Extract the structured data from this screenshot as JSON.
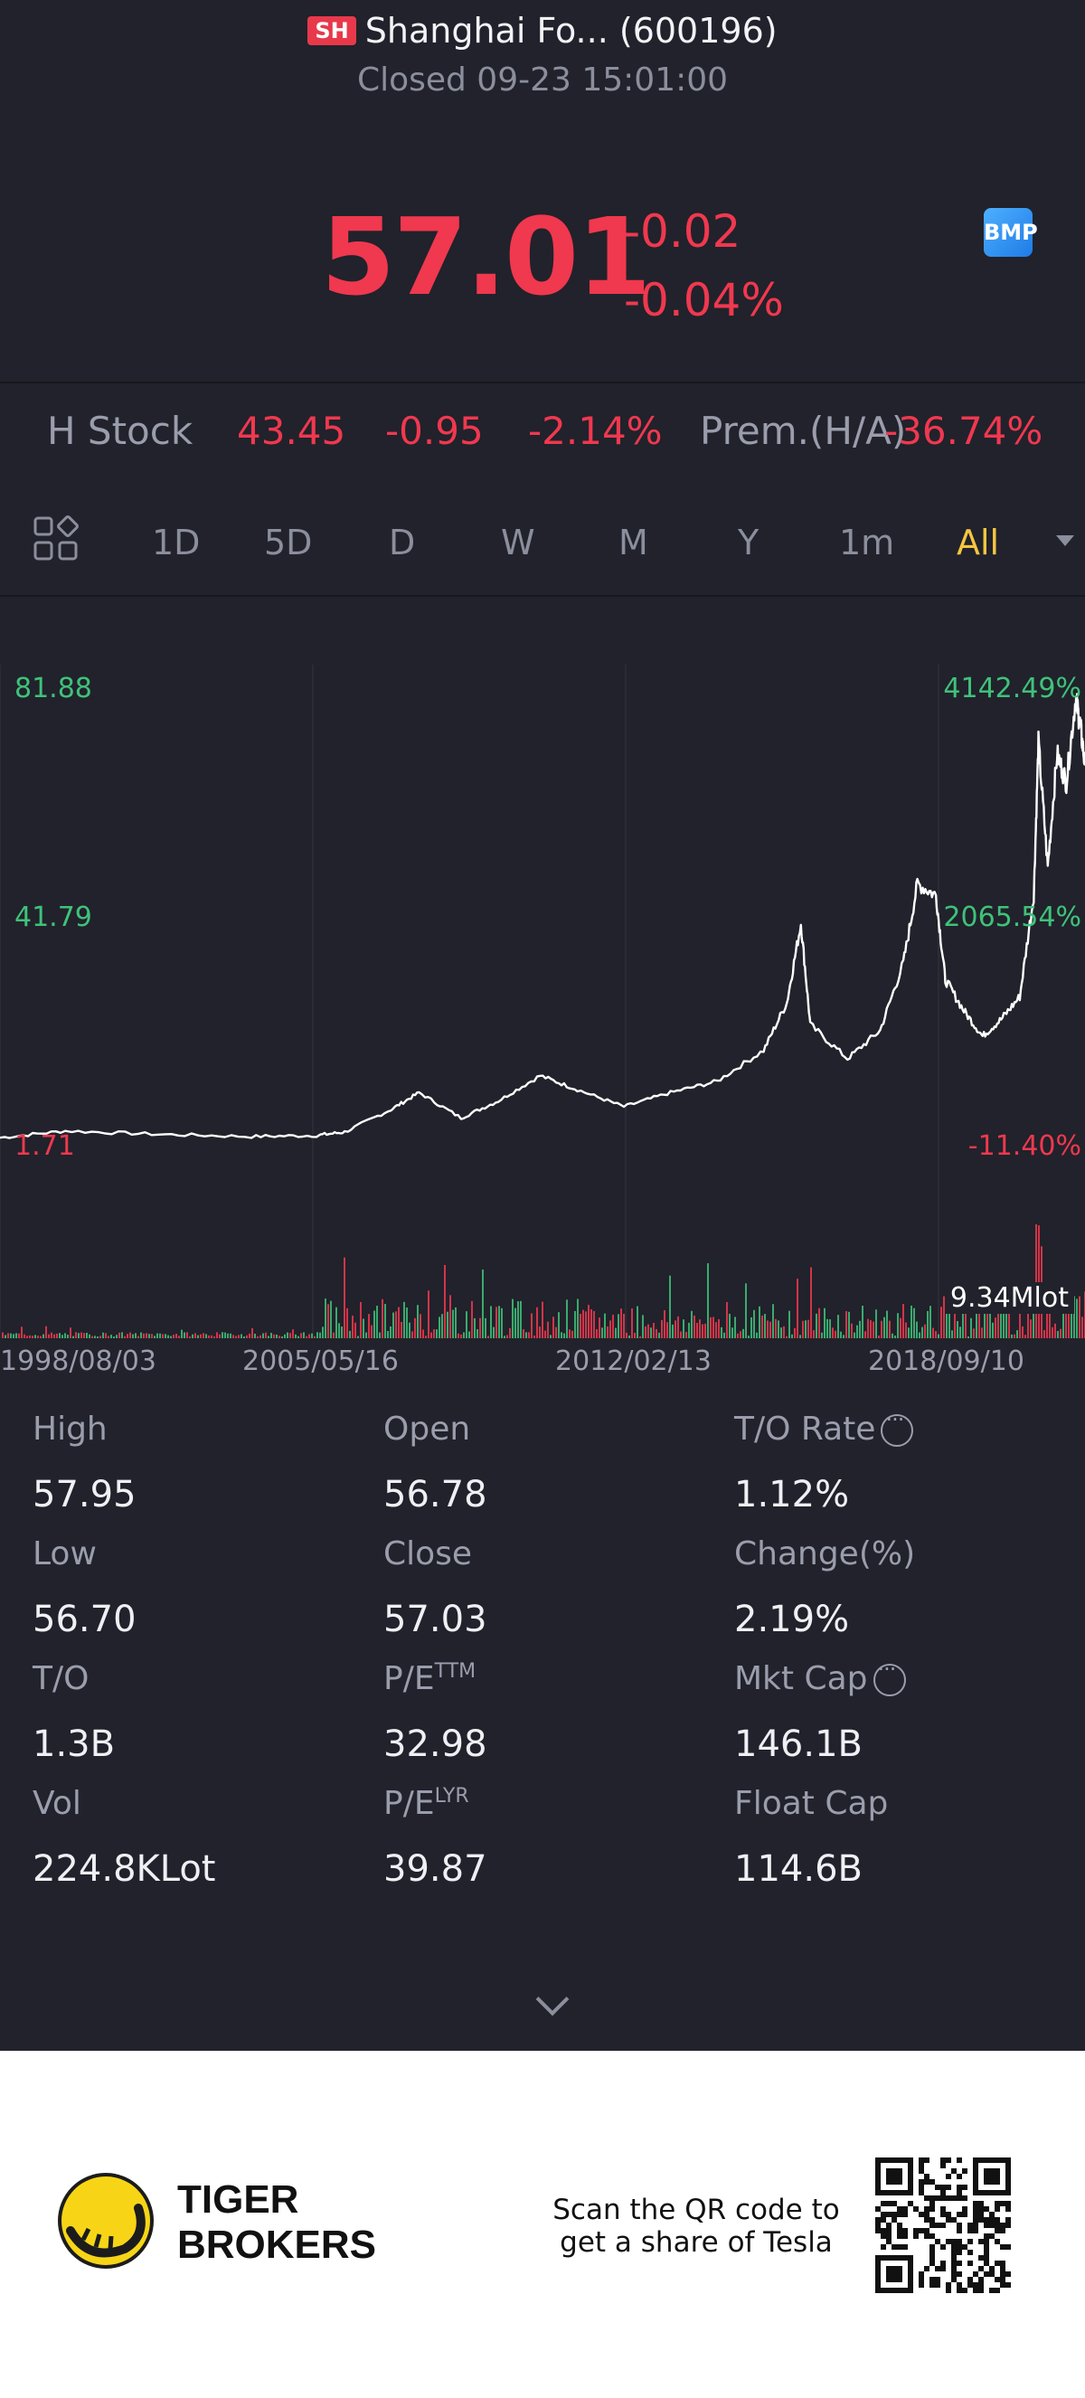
{
  "header": {
    "exchange_badge": "SH",
    "title": "Shanghai Fo... (600196)",
    "status": "Closed 09-23 15:01:00"
  },
  "quote": {
    "price": "57.01",
    "change": "-0.02",
    "change_pct": "-0.04%",
    "badge": "BMP"
  },
  "h_stock": {
    "label": "H Stock",
    "price": "43.45",
    "change": "-0.95",
    "change_pct": "-2.14%",
    "premium_label": "Prem.(H/A)",
    "premium_value": "-36.74%"
  },
  "tabs": [
    "1D",
    "5D",
    "D",
    "W",
    "M",
    "Y",
    "1m",
    "All"
  ],
  "active_tab": "All",
  "chart_data": {
    "type": "line",
    "y_left_labels": [
      "81.88",
      "41.79",
      "1.71"
    ],
    "y_right_labels": [
      "4142.49%",
      "2065.54%",
      "-11.40%"
    ],
    "x_labels": [
      "1998/08/03",
      "2005/05/16",
      "2012/02/13",
      "2018/09/10"
    ],
    "volume_label": "9.34Mlot",
    "ylim": [
      1.71,
      81.88
    ],
    "series": [
      {
        "values": [
          [
            1998.6,
            2.0
          ],
          [
            2000.0,
            3.2
          ],
          [
            2002.0,
            2.6
          ],
          [
            2004.0,
            2.2
          ],
          [
            2005.4,
            2.4
          ],
          [
            2006.0,
            3.0
          ],
          [
            2007.0,
            7.0
          ],
          [
            2007.6,
            10.0
          ],
          [
            2008.5,
            5.5
          ],
          [
            2009.3,
            8.5
          ],
          [
            2010.2,
            13.0
          ],
          [
            2011.0,
            10.5
          ],
          [
            2012.0,
            7.5
          ],
          [
            2013.0,
            10.0
          ],
          [
            2014.0,
            12.0
          ],
          [
            2015.0,
            17.5
          ],
          [
            2015.5,
            26.0
          ],
          [
            2015.8,
            40.0
          ],
          [
            2016.0,
            22.0
          ],
          [
            2016.8,
            16.0
          ],
          [
            2017.5,
            21.0
          ],
          [
            2018.0,
            33.0
          ],
          [
            2018.3,
            47.0
          ],
          [
            2018.7,
            45.0
          ],
          [
            2018.9,
            30.0
          ],
          [
            2019.3,
            24.5
          ],
          [
            2019.7,
            20.0
          ],
          [
            2020.1,
            23.0
          ],
          [
            2020.5,
            27.0
          ],
          [
            2020.8,
            45.0
          ],
          [
            2020.9,
            72.0
          ],
          [
            2021.1,
            50.0
          ],
          [
            2021.3,
            70.0
          ],
          [
            2021.5,
            65.0
          ],
          [
            2021.7,
            80.0
          ],
          [
            2021.8,
            75.0
          ],
          [
            2021.9,
            68.0
          ]
        ]
      }
    ]
  },
  "stats": [
    {
      "label": "High",
      "value": "57.95"
    },
    {
      "label": "Open",
      "value": "56.78"
    },
    {
      "label": "T/O Rate",
      "value": "1.12%"
    },
    {
      "label": "Low",
      "value": "56.70"
    },
    {
      "label": "Close",
      "value": "57.03"
    },
    {
      "label": "Change(%)",
      "value": "2.19%"
    },
    {
      "label": "T/O",
      "value": "1.3B"
    },
    {
      "label": "P/E",
      "sup": "TTM",
      "value": "32.98"
    },
    {
      "label": "Mkt Cap",
      "value": "146.1B"
    },
    {
      "label": "Vol",
      "value": "224.8KLot"
    },
    {
      "label": "P/E",
      "sup": "LYR",
      "value": "39.87"
    },
    {
      "label": "Float Cap",
      "value": "114.6B"
    }
  ],
  "footer": {
    "brand_line1": "TIGER",
    "brand_line2": "BROKERS",
    "promo_line1": "Scan the QR code to",
    "promo_line2": "get a share of Tesla"
  },
  "colors": {
    "background": "#21222b",
    "down_red": "#f0384f",
    "up_green": "#3fc27a",
    "active_tab": "#f6c640"
  }
}
